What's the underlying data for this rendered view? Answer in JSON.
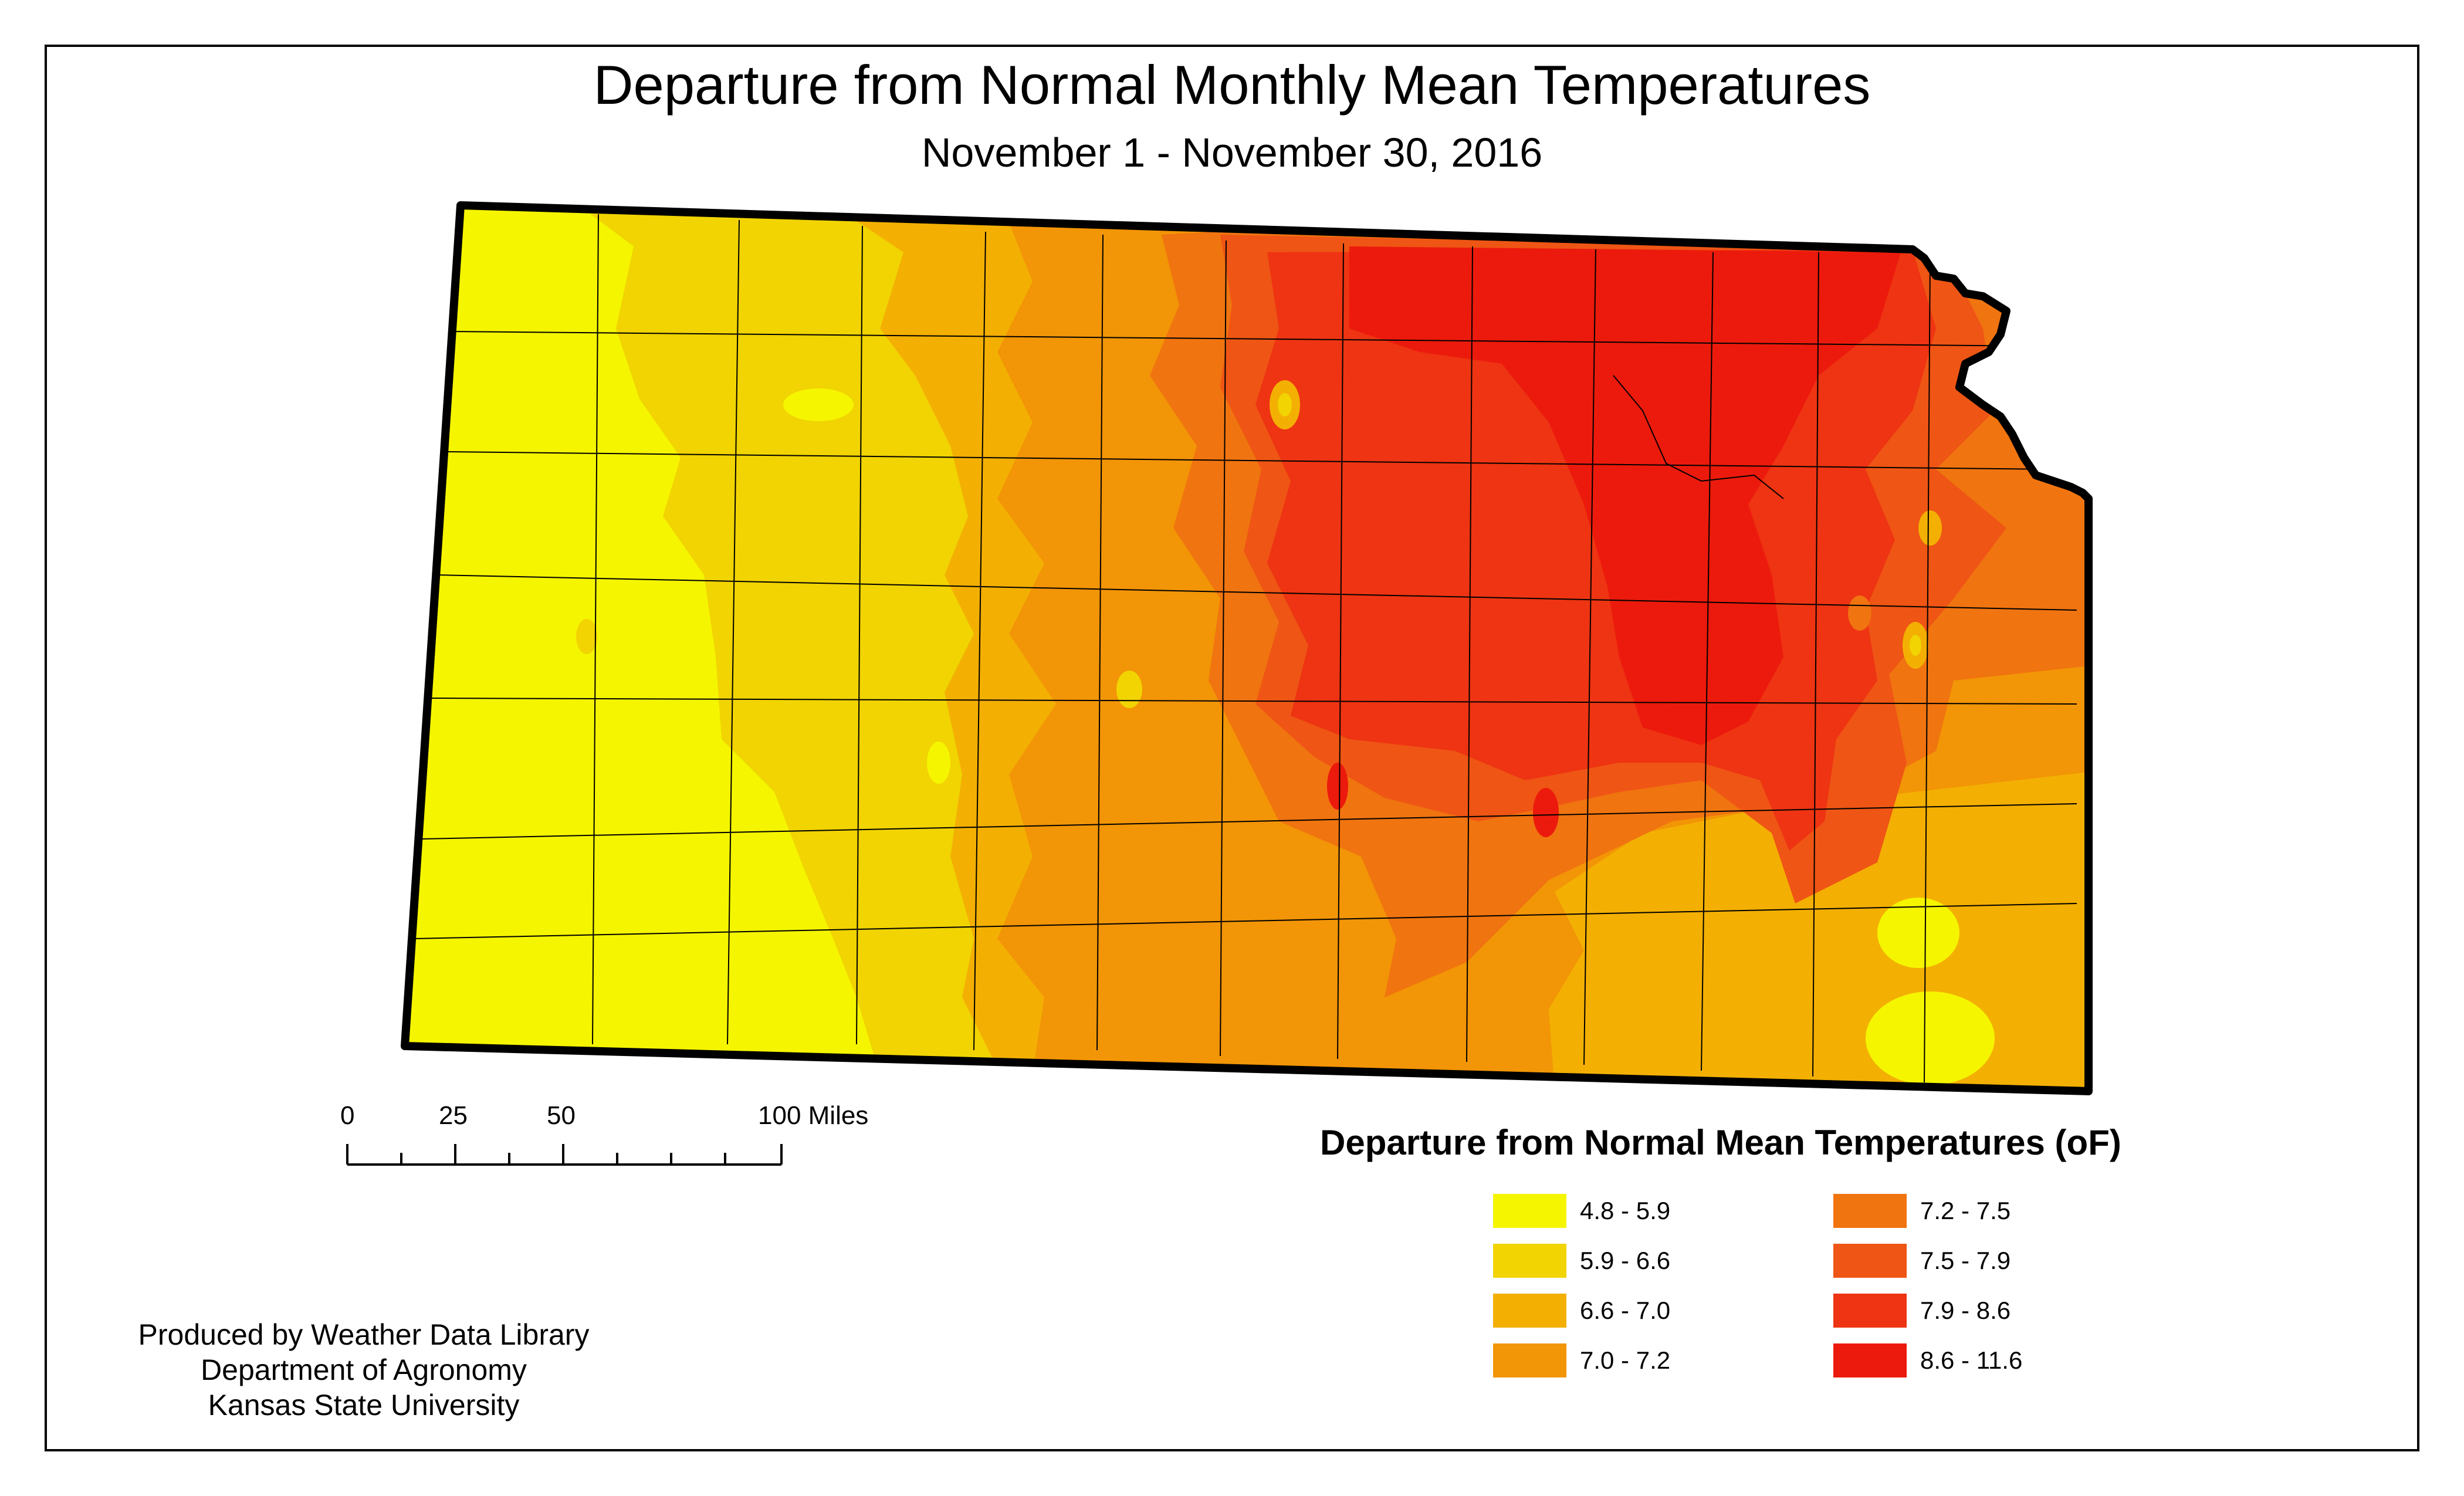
{
  "title": "Departure from Normal Monthly Mean Temperatures",
  "subtitle": "November 1 - November 30, 2016",
  "map": {
    "region": "Kansas",
    "unit": "°F",
    "classes": [
      {
        "range": "4.8 - 5.9",
        "color": "#f5f500"
      },
      {
        "range": "5.9 - 6.6",
        "color": "#f1d402"
      },
      {
        "range": "6.6 - 7.0",
        "color": "#f3b003"
      },
      {
        "range": "7.0 - 7.2",
        "color": "#f29506"
      },
      {
        "range": "7.2 - 7.5",
        "color": "#f07410"
      },
      {
        "range": "7.5 - 7.9",
        "color": "#ef5514"
      },
      {
        "range": "7.9 - 8.6",
        "color": "#ee3412"
      },
      {
        "range": "8.6 - 11.6",
        "color": "#ec1a0c"
      }
    ]
  },
  "scale_bar": {
    "ticks": [
      "0",
      "25",
      "50",
      "100 Miles"
    ]
  },
  "legend": {
    "title": "Departure from Normal Mean Temperatures (oF)",
    "items": [
      "4.8 - 5.9",
      "5.9 - 6.6",
      "6.6 - 7.0",
      "7.0 - 7.2",
      "7.2 - 7.5",
      "7.5 - 7.9",
      "7.9 - 8.6",
      "8.6 - 11.6"
    ],
    "colors": [
      "#f5f500",
      "#f1d402",
      "#f3b003",
      "#f29506",
      "#f07410",
      "#ef5514",
      "#ee3412",
      "#ec1a0c"
    ]
  },
  "credits": [
    "Produced by Weather Data Library",
    "Department of Agronomy",
    "Kansas State University"
  ]
}
